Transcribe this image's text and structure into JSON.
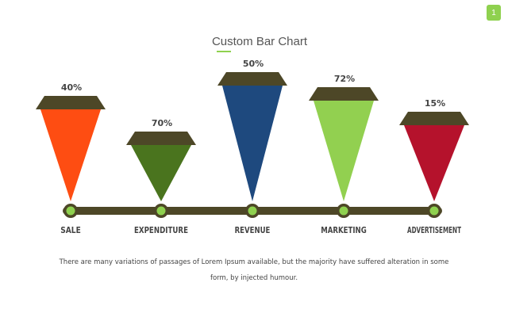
{
  "page_number": "1",
  "chart_data": {
    "type": "bar",
    "title": "Custom Bar Chart",
    "categories": [
      "SALE",
      "EXPENDITURE",
      "REVENUE",
      "MARKETING",
      "ADVERTISEMENT"
    ],
    "data_labels": [
      "40%",
      "70%",
      "50%",
      "72%",
      "15%"
    ],
    "colors": [
      "#fe4d12",
      "#4a741e",
      "#1e497e",
      "#92d050",
      "#b5122c"
    ],
    "cap_color": "#4d4727",
    "axis_color": "#4d4727",
    "dot_color": "#8fd14f",
    "xlabel": "",
    "ylabel": ""
  },
  "caption": "There are many variations of passages of Lorem Ipsum available, but the majority have suffered alteration in some form, by injected humour."
}
